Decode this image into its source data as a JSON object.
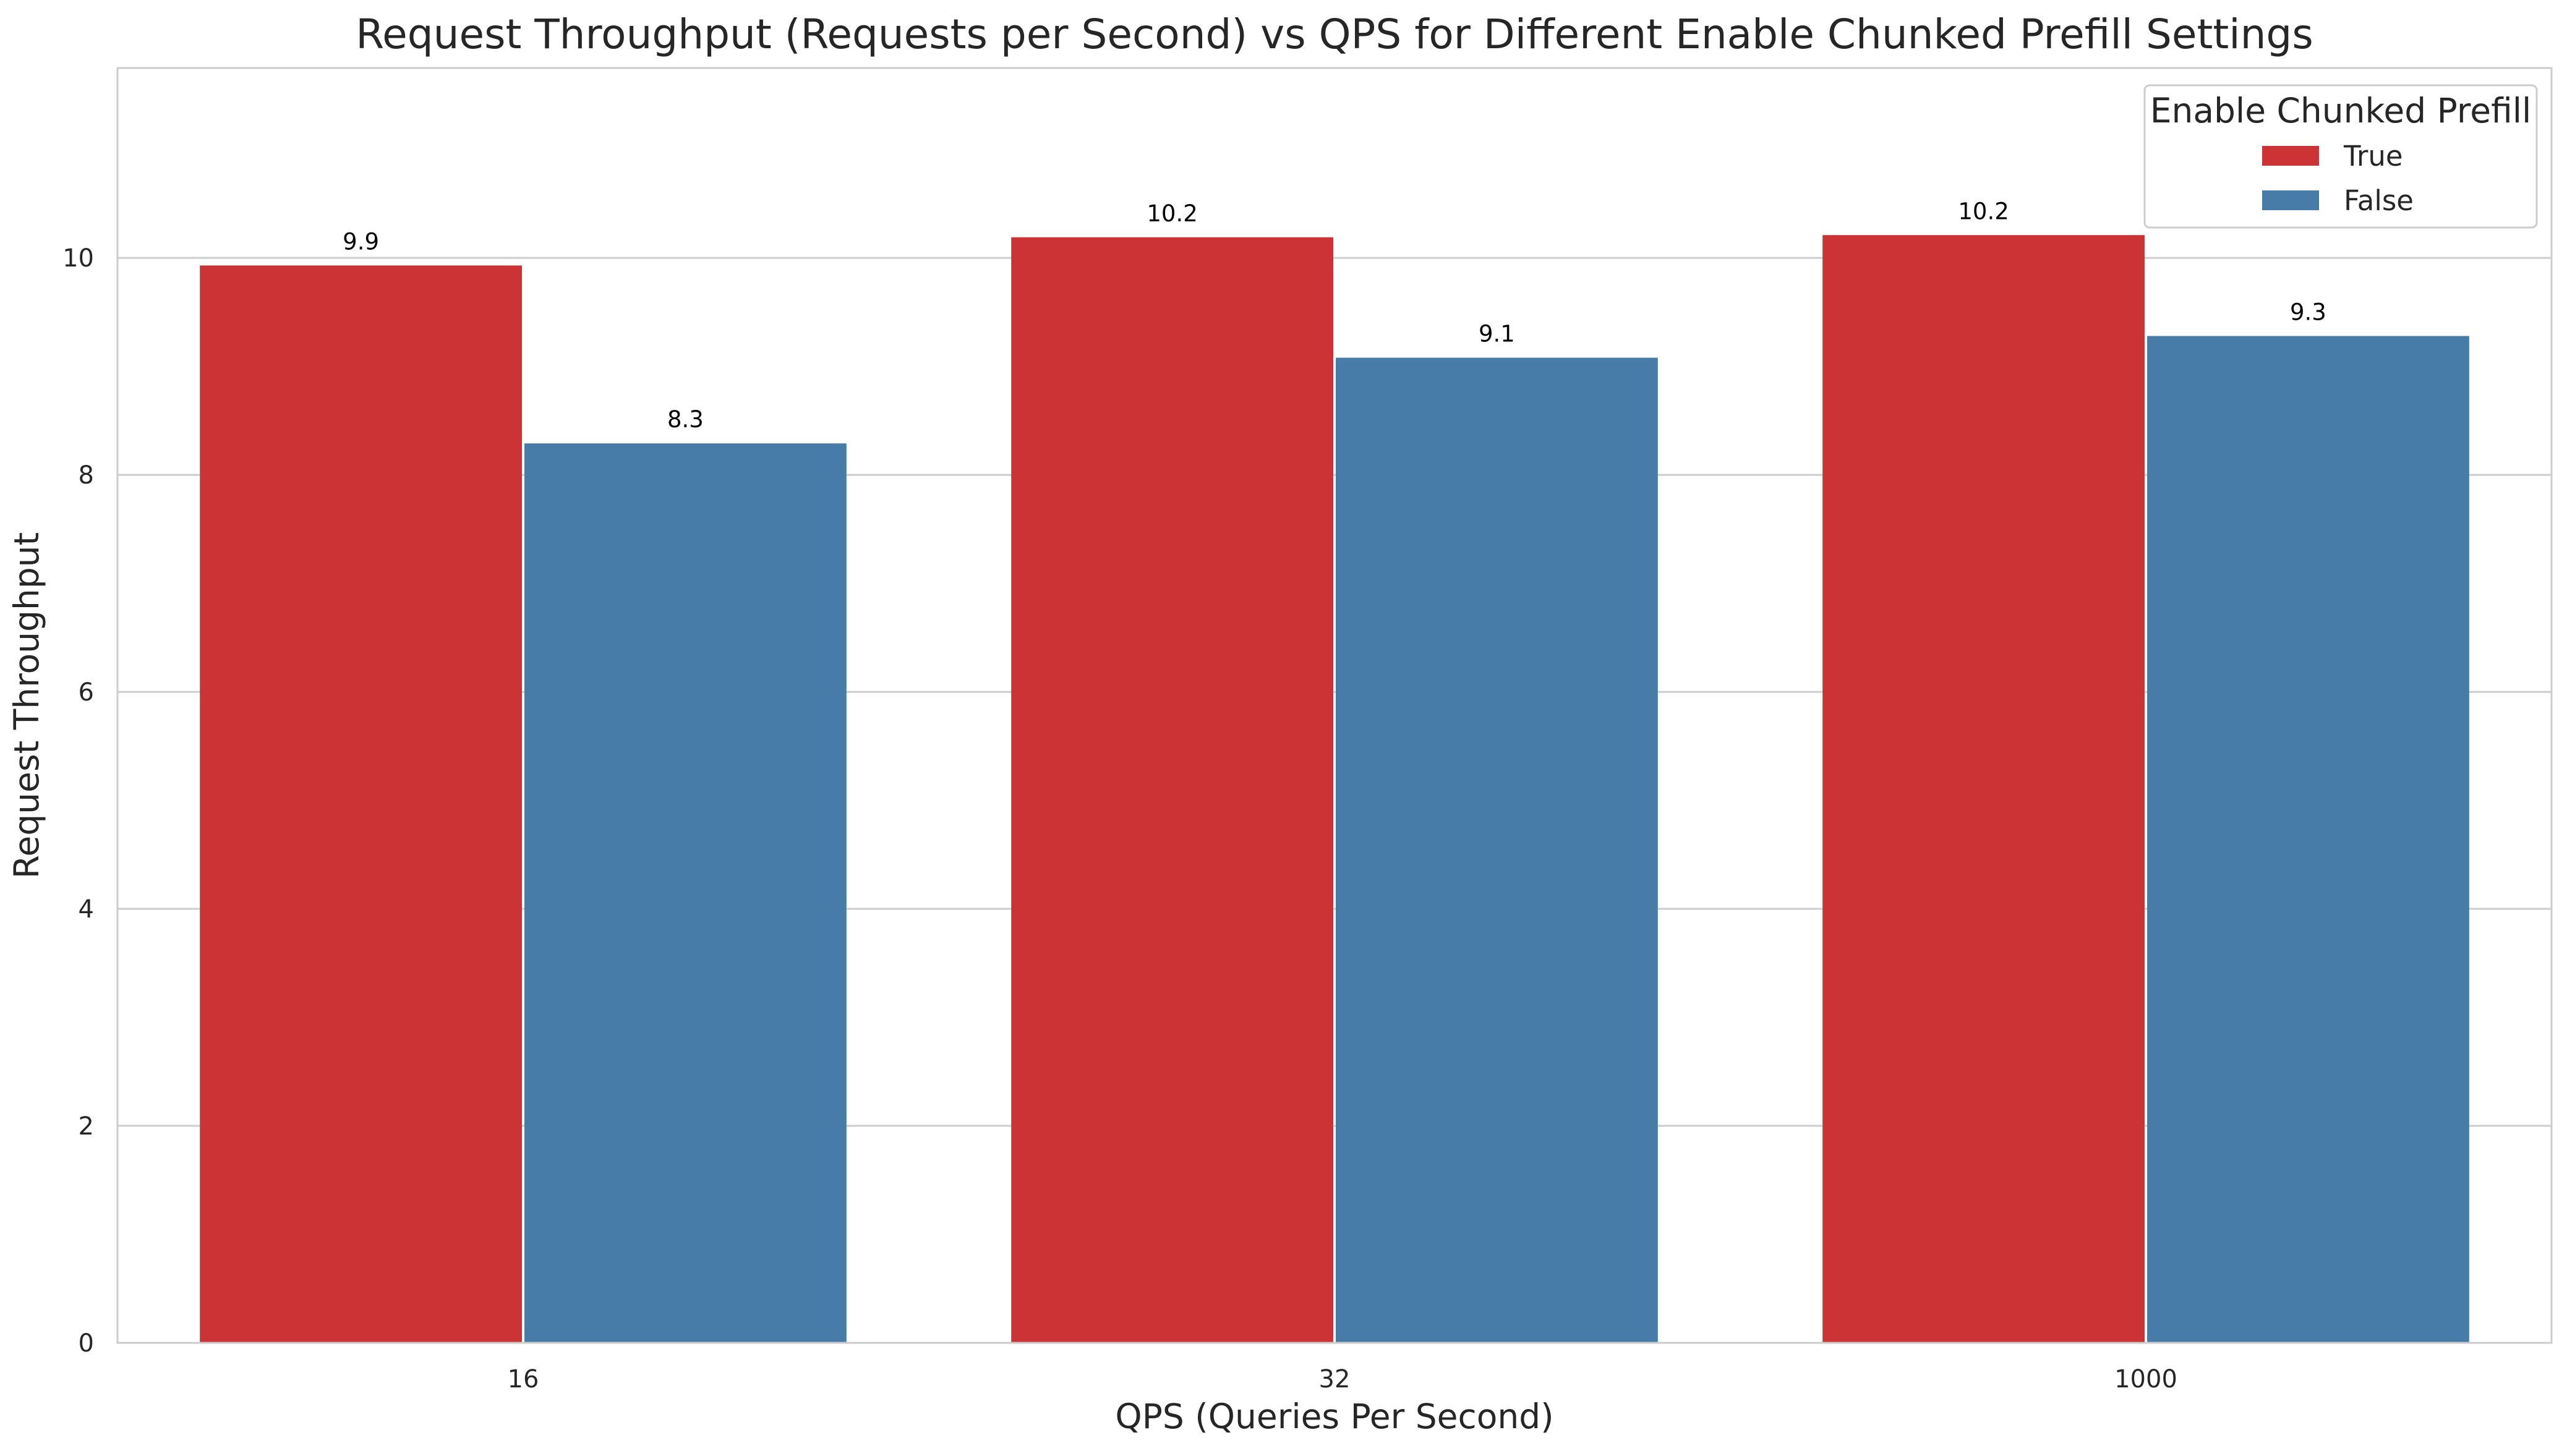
{
  "chart_data": {
    "type": "bar",
    "title": "Request Throughput (Requests per Second) vs QPS for Different Enable Chunked Prefill Settings",
    "xlabel": "QPS (Queries Per Second)",
    "ylabel": "Request Throughput",
    "categories": [
      "16",
      "32",
      "1000"
    ],
    "ylim": [
      0,
      11.75
    ],
    "yticks": [
      0,
      2,
      4,
      6,
      8,
      10
    ],
    "grid": "horizontal",
    "legend": {
      "title": "Enable Chunked Prefill",
      "placement": "top-right"
    },
    "series": [
      {
        "name": "True",
        "color": "#cb3335",
        "values": [
          9.93,
          10.19,
          10.21
        ],
        "labels": [
          "9.9",
          "10.2",
          "10.2"
        ]
      },
      {
        "name": "False",
        "color": "#477ca8",
        "values": [
          8.29,
          9.08,
          9.28
        ],
        "labels": [
          "8.3",
          "9.1",
          "9.3"
        ]
      }
    ]
  }
}
